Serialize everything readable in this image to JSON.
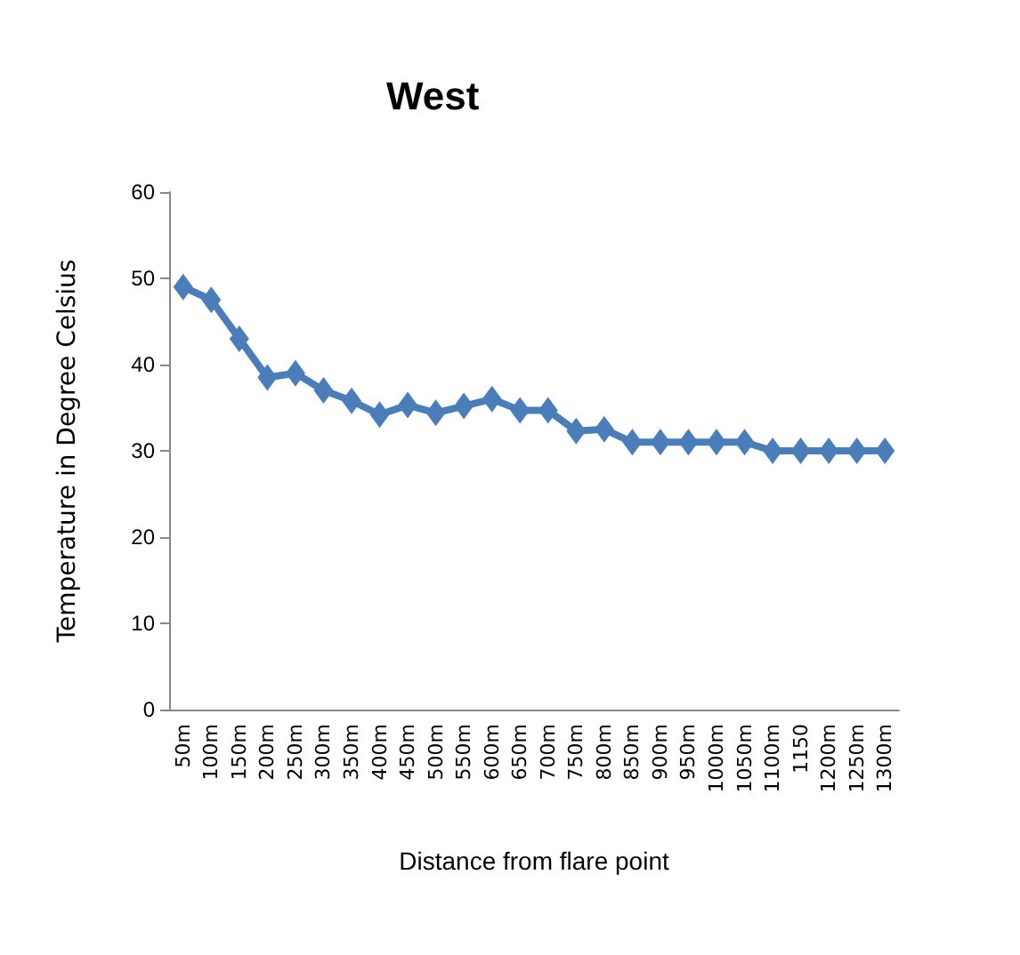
{
  "chart_data": {
    "type": "line",
    "title": "West",
    "xlabel": "Distance from flare point",
    "ylabel": "Temperature in Degree Celsius",
    "categories": [
      "50m",
      "100m",
      "150m",
      "200m",
      "250m",
      "300m",
      "350m",
      "400m",
      "450m",
      "500m",
      "550m",
      "600m",
      "650m",
      "700m",
      "750m",
      "800m",
      "850m",
      "900m",
      "950m",
      "1000m",
      "1050m",
      "1100m",
      "1150",
      "1200m",
      "1250m",
      "1300m"
    ],
    "series": [
      {
        "color": "#4a7ebb",
        "values": [
          49,
          47.5,
          43,
          38.5,
          39,
          37,
          35.8,
          34.2,
          35.3,
          34.4,
          35.2,
          36,
          34.7,
          34.7,
          32.3,
          32.5,
          31,
          31,
          31,
          31,
          31,
          30,
          30,
          30,
          30,
          30
        ]
      }
    ],
    "ylim": [
      0,
      60
    ],
    "yticks": [
      0,
      10,
      20,
      30,
      40,
      50,
      60
    ],
    "grid": false,
    "marker": "diamond",
    "line_style": "solid"
  }
}
